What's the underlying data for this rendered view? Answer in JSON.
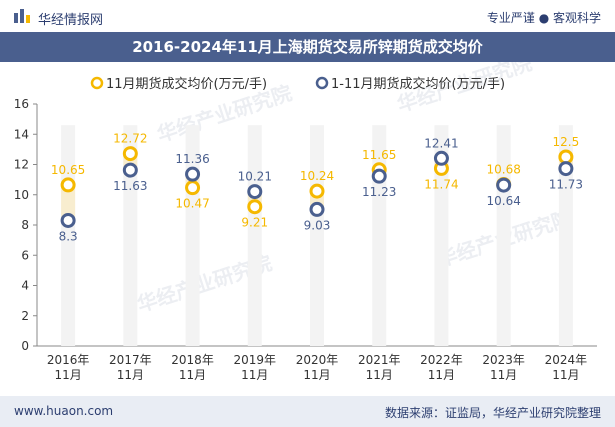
{
  "header": {
    "brand": "华经情报网",
    "slogan": "专业严谨 ● 客观科学"
  },
  "footer": {
    "website": "www.huaon.com",
    "source": "数据来源：证监局，华经产业研究院整理"
  },
  "watermark": "华经产业研究院",
  "colors": {
    "nov": "#f5b800",
    "ytd": "#4a5f8e",
    "range": "#f8edcf",
    "title_bg": "#4a5f8e",
    "footer_bg": "#e9edf4"
  },
  "chart_data": {
    "type": "scatter",
    "title": "2016-2024年11月上海期货交易所锌期货成交均价",
    "categories": [
      "2016年\n11月",
      "2017年\n11月",
      "2018年\n11月",
      "2019年\n11月",
      "2020年\n11月",
      "2021年\n11月",
      "2022年\n11月",
      "2023年\n11月",
      "2024年\n11月"
    ],
    "series": [
      {
        "name": "11月期货成交均价(万元/手)",
        "values": [
          10.65,
          12.72,
          10.47,
          9.21,
          10.24,
          11.65,
          11.74,
          10.68,
          12.5
        ]
      },
      {
        "name": "1-11月期货成交均价(万元/手)",
        "values": [
          8.3,
          11.63,
          11.36,
          10.21,
          9.03,
          11.23,
          12.41,
          10.64,
          11.73
        ]
      }
    ],
    "ylim": [
      0,
      16
    ],
    "yticks": [
      0,
      2,
      4,
      6,
      8,
      10,
      12,
      14,
      16
    ],
    "xlabel": "",
    "ylabel": "",
    "legend": "top-center",
    "grid": false
  }
}
